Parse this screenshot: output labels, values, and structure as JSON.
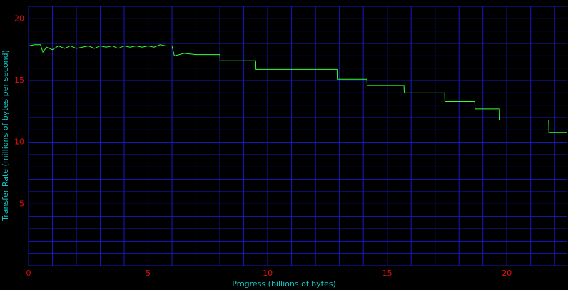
{
  "chart_data": {
    "type": "line",
    "xlabel": "Progress (billions of bytes)",
    "ylabel": "Transfer Rate (millions of bytes per second)",
    "xlim": [
      0,
      22.5
    ],
    "ylim": [
      0,
      21
    ],
    "xticks": [
      0,
      5,
      10,
      15,
      20
    ],
    "yticks": [
      5,
      10,
      15,
      20
    ],
    "grid": true,
    "grid_step": 1,
    "series": [
      {
        "name": "Transfer Rate",
        "color": "#33ff33",
        "x": [
          0,
          0.25,
          0.5,
          0.6,
          0.75,
          1,
          1.25,
          1.5,
          1.75,
          2,
          2.25,
          2.5,
          2.75,
          3,
          3.25,
          3.5,
          3.75,
          4,
          4.25,
          4.5,
          4.75,
          5,
          5.25,
          5.5,
          5.75,
          6.0,
          6.1,
          6.5,
          7.0,
          7.5,
          8.0,
          8.01,
          9.5,
          9.51,
          12.9,
          12.91,
          14.15,
          14.16,
          15.7,
          15.71,
          17.4,
          17.41,
          18.66,
          18.67,
          19.7,
          19.71,
          21.75,
          21.76,
          22.5
        ],
        "values": [
          17.8,
          17.9,
          17.9,
          17.3,
          17.7,
          17.5,
          17.8,
          17.6,
          17.8,
          17.6,
          17.7,
          17.8,
          17.6,
          17.8,
          17.7,
          17.8,
          17.6,
          17.8,
          17.7,
          17.8,
          17.7,
          17.8,
          17.7,
          17.9,
          17.8,
          17.8,
          17.0,
          17.2,
          17.1,
          17.1,
          17.1,
          16.6,
          16.6,
          15.9,
          15.9,
          15.1,
          15.1,
          14.6,
          14.6,
          14.0,
          14.0,
          13.3,
          13.3,
          12.7,
          12.7,
          11.8,
          11.8,
          10.8,
          10.8
        ]
      }
    ]
  }
}
